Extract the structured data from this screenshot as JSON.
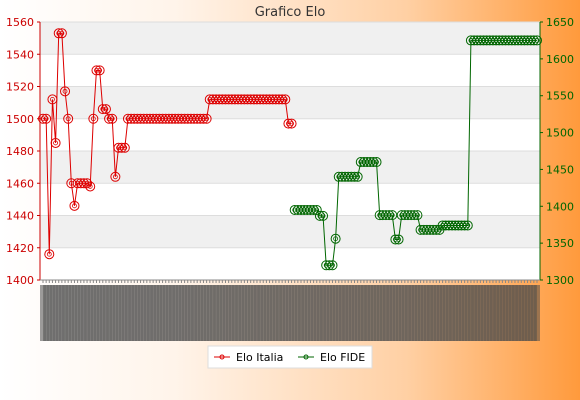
{
  "chart_data": {
    "type": "line",
    "title": "Grafico Elo",
    "xlabel": "",
    "ylabel": "",
    "grid": true,
    "legend_placement": "bottom",
    "x_tick_labels_note": "dense rotated date labels (unreadable), one per game",
    "x_count": 80,
    "y_left": {
      "ylim": [
        1400,
        1560
      ],
      "ticks": [
        1400,
        1420,
        1440,
        1460,
        1480,
        1500,
        1520,
        1540,
        1560
      ]
    },
    "y_right": {
      "ylim": [
        1300,
        1650
      ],
      "ticks": [
        1300,
        1350,
        1400,
        1450,
        1500,
        1550,
        1600,
        1650
      ]
    },
    "series": [
      {
        "name": "Elo Italia",
        "axis": "left",
        "color": "#dd0000",
        "values": [
          1500,
          1500,
          1416,
          1512,
          1485,
          1553,
          1553,
          1517,
          1500,
          1460,
          1446,
          1460,
          1460,
          1460,
          1460,
          1458,
          1500,
          1530,
          1530,
          1506,
          1506,
          1500,
          1500,
          1464,
          1482,
          1482,
          1482,
          1500,
          1500,
          1500,
          1500,
          1500,
          1500,
          1500,
          1500,
          1500,
          1500,
          1500,
          1500,
          1500,
          1500,
          1500,
          1500,
          1500,
          1500,
          1500,
          1500,
          1500,
          1500,
          1500,
          1500,
          1500,
          1500,
          1512,
          1512,
          1512,
          1512,
          1512,
          1512,
          1512,
          1512,
          1512,
          1512,
          1512,
          1512,
          1512,
          1512,
          1512,
          1512,
          1512,
          1512,
          1512,
          1512,
          1512,
          1512,
          1512,
          1512,
          1512,
          1497,
          1497
        ]
      },
      {
        "name": "Elo FIDE",
        "axis": "right",
        "color": "#006600",
        "x_start_index": 80,
        "values": [
          1395,
          1395,
          1395,
          1395,
          1395,
          1395,
          1395,
          1395,
          1387,
          1387,
          1320,
          1320,
          1320,
          1356,
          1440,
          1440,
          1440,
          1440,
          1440,
          1440,
          1440,
          1460,
          1460,
          1460,
          1460,
          1460,
          1460,
          1388,
          1388,
          1388,
          1388,
          1388,
          1355,
          1355,
          1388,
          1388,
          1388,
          1388,
          1388,
          1388,
          1368,
          1368,
          1368,
          1368,
          1368,
          1368,
          1368,
          1374,
          1374,
          1374,
          1374,
          1374,
          1374,
          1374,
          1374,
          1374,
          1625,
          1625,
          1625,
          1625,
          1625,
          1625,
          1625,
          1625,
          1625,
          1625,
          1625,
          1625,
          1625,
          1625,
          1625,
          1625,
          1625,
          1625,
          1625,
          1625,
          1625,
          1625
        ]
      }
    ]
  }
}
